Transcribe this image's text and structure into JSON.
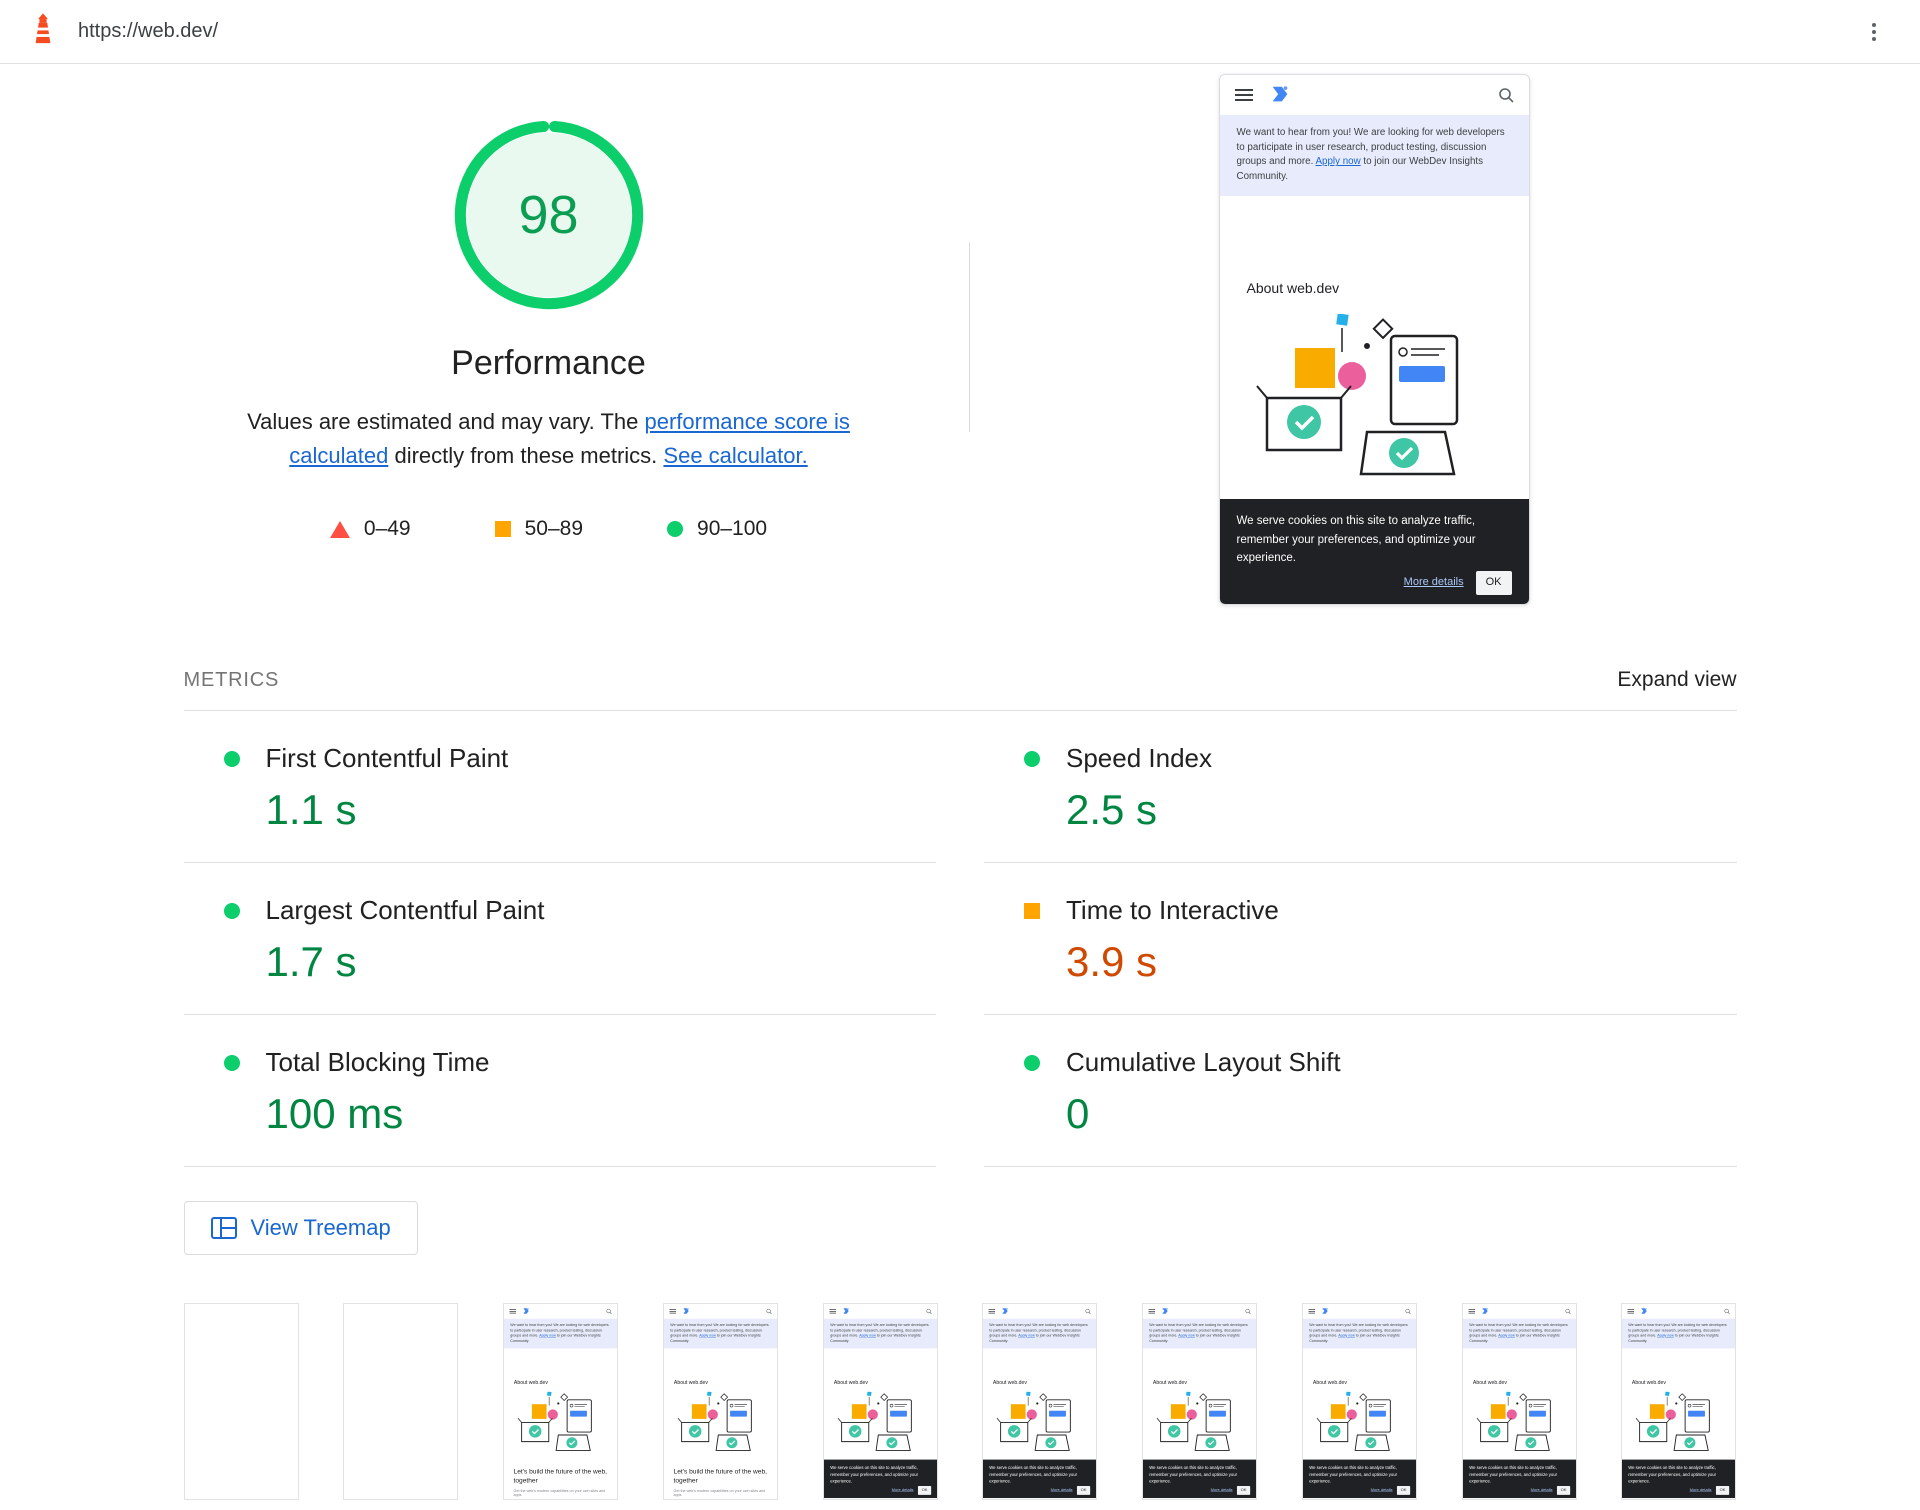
{
  "topbar": {
    "url": "https://web.dev/"
  },
  "theme": {
    "link_blue": "#1967d2",
    "pass_text": "#018642",
    "average_text": "#d04900",
    "pass_icon": "#0cce6b",
    "average_icon": "#ffa400",
    "fail_icon": "#ff4e42",
    "score_green": "#0b9e53"
  },
  "summary": {
    "score": "98",
    "title": "Performance",
    "description": {
      "part1": "Values are estimated and may vary. The ",
      "link1": "performance score is calculated",
      "part2": " directly from these metrics. ",
      "link2": "See calculator."
    },
    "legend": [
      {
        "shape": "triangle",
        "color": "#ff4e42",
        "label": "0–49"
      },
      {
        "shape": "square",
        "color": "#ffa400",
        "label": "50–89"
      },
      {
        "shape": "circle",
        "color": "#0cce6b",
        "label": "90–100"
      }
    ]
  },
  "screenshot": {
    "banner": {
      "text_before": "We want to hear from you! We are looking for web developers to participate in user research, product testing, discussion groups and more. ",
      "link": "Apply now",
      "text_after": " to join our WebDev Insights Community."
    },
    "about": "About web.dev",
    "headline": "Let's build the future of the web, together",
    "subline": "Get the web's modern capabilities on your own sites and apps",
    "cookie": {
      "text": "We serve cookies on this site to analyze traffic, remember your preferences, and optimize your experience.",
      "more": "More details",
      "ok": "OK"
    }
  },
  "metrics": {
    "heading": "METRICS",
    "expand": "Expand view",
    "items": [
      {
        "title": "First Contentful Paint",
        "value": "1.1 s",
        "status": "pass"
      },
      {
        "title": "Speed Index",
        "value": "2.5 s",
        "status": "pass"
      },
      {
        "title": "Largest Contentful Paint",
        "value": "1.7 s",
        "status": "pass"
      },
      {
        "title": "Time to Interactive",
        "value": "3.9 s",
        "status": "average"
      },
      {
        "title": "Total Blocking Time",
        "value": "100 ms",
        "status": "pass"
      },
      {
        "title": "Cumulative Layout Shift",
        "value": "0",
        "status": "pass"
      }
    ]
  },
  "treemap": {
    "label": "View Treemap"
  },
  "filmstrip": [
    {
      "state": "blank"
    },
    {
      "state": "blank"
    },
    {
      "state": "partial"
    },
    {
      "state": "partial"
    },
    {
      "state": "full"
    },
    {
      "state": "full"
    },
    {
      "state": "full"
    },
    {
      "state": "full"
    },
    {
      "state": "full"
    },
    {
      "state": "full"
    }
  ]
}
